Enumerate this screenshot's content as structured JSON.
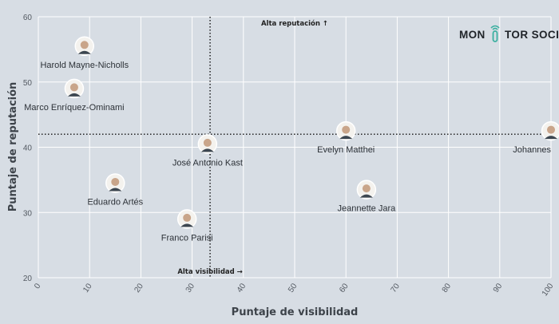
{
  "brand": {
    "name_left": "MON",
    "name_right": "TOR SOCIAL",
    "accent_color": "#3bb0a0"
  },
  "chart_data": {
    "type": "scatter",
    "xlabel": "Puntaje de visibilidad",
    "ylabel": "Puntaje de reputación",
    "xlim": [
      0,
      100
    ],
    "ylim": [
      20,
      60
    ],
    "xticks": [
      0,
      10,
      20,
      30,
      40,
      50,
      60,
      70,
      80,
      90,
      100
    ],
    "yticks": [
      20,
      30,
      40,
      50,
      60
    ],
    "grid": true,
    "reference_lines": {
      "x": 33.5,
      "y": 42
    },
    "annotations": [
      {
        "text": "Alta reputación ↑",
        "x": 50,
        "y": 59
      },
      {
        "text": "Alta visibilidad →",
        "x": 33.5,
        "y": 21
      }
    ],
    "points": [
      {
        "label": "Harold Mayne-Nicholls",
        "x": 9,
        "y": 55.5
      },
      {
        "label": "Marco Enríquez-Ominami",
        "x": 7,
        "y": 49
      },
      {
        "label": "Evelyn Matthei",
        "x": 60,
        "y": 42.5
      },
      {
        "label": "Johannes",
        "x": 100,
        "y": 42.5
      },
      {
        "label": "José Antonio Kast",
        "x": 33,
        "y": 40.5
      },
      {
        "label": "Eduardo Artés",
        "x": 15,
        "y": 34.5
      },
      {
        "label": "Jeannette Jara",
        "x": 64,
        "y": 33.5
      },
      {
        "label": "Franco Parisi",
        "x": 29,
        "y": 29
      }
    ]
  }
}
